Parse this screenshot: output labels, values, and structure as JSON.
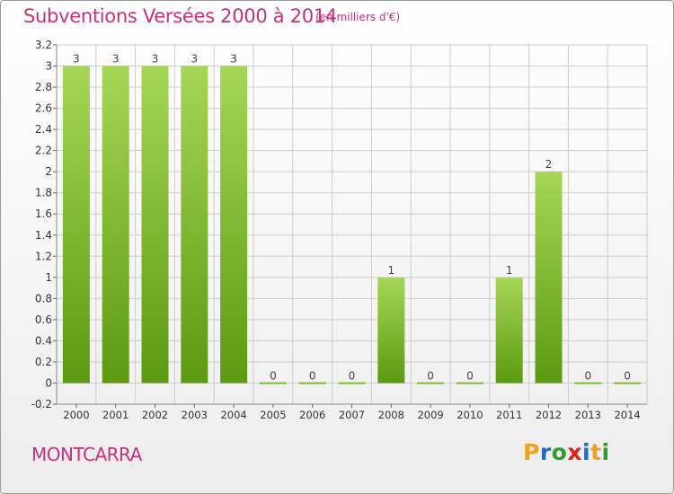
{
  "header": {
    "title": "Subventions Versées 2000 à 2014",
    "unit": "(en milliers d'€)"
  },
  "footer": {
    "commune": "MONTCARRA",
    "logo": {
      "text": "Proxiti",
      "colors": [
        "#f0a020",
        "#1a6fc4",
        "#2aa02a",
        "#e02020",
        "#1a6fc4",
        "#f0a020",
        "#2aa02a"
      ]
    }
  },
  "colors": {
    "title": "#c5317c",
    "bar_light": "#a6d656",
    "bar_dark": "#5c9a10",
    "grid": "#cccccc"
  },
  "chart_data": {
    "type": "bar",
    "categories": [
      "2000",
      "2001",
      "2002",
      "2003",
      "2004",
      "2005",
      "2006",
      "2007",
      "2008",
      "2009",
      "2010",
      "2011",
      "2012",
      "2013",
      "2014"
    ],
    "values": [
      3,
      3,
      3,
      3,
      3,
      0,
      0,
      0,
      1,
      0,
      0,
      1,
      2,
      0,
      0
    ],
    "data_labels": [
      "3",
      "3",
      "3",
      "3",
      "3",
      "0",
      "0",
      "0",
      "1",
      "0",
      "0",
      "1",
      "2",
      "0",
      "0"
    ],
    "ylim": [
      -0.2,
      3.2
    ],
    "yticks": [
      "-0.2",
      "0",
      "0.2",
      "0.4",
      "0.6",
      "0.8",
      "1",
      "1.2",
      "1.4",
      "1.6",
      "1.8",
      "2",
      "2.2",
      "2.4",
      "2.6",
      "2.8",
      "3",
      "3.2"
    ],
    "grid": true,
    "legend": "none"
  }
}
